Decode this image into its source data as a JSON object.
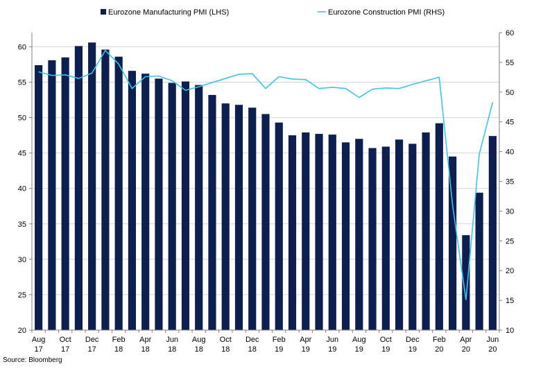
{
  "chart_data": {
    "type": "bar+line",
    "categories": [
      "Aug 17",
      "Sep 17",
      "Oct 17",
      "Nov 17",
      "Dec 17",
      "Jan 18",
      "Feb 18",
      "Mar 18",
      "Apr 18",
      "May 18",
      "Jun 18",
      "Jul 18",
      "Aug 18",
      "Sep 18",
      "Oct 18",
      "Nov 18",
      "Dec 18",
      "Jan 19",
      "Feb 19",
      "Mar 19",
      "Apr 19",
      "May 19",
      "Jun 19",
      "Jul 19",
      "Aug 19",
      "Sep 19",
      "Oct 19",
      "Nov 19",
      "Dec 19",
      "Jan 20",
      "Feb 20",
      "Mar 20",
      "Apr 20",
      "May 20",
      "Jun 20"
    ],
    "tick_labels": [
      {
        "index": 0,
        "line1": "Aug",
        "line2": "17"
      },
      {
        "index": 2,
        "line1": "Oct",
        "line2": "17"
      },
      {
        "index": 4,
        "line1": "Dec",
        "line2": "17"
      },
      {
        "index": 6,
        "line1": "Feb",
        "line2": "18"
      },
      {
        "index": 8,
        "line1": "Apr",
        "line2": "18"
      },
      {
        "index": 10,
        "line1": "Jun",
        "line2": "18"
      },
      {
        "index": 12,
        "line1": "Aug",
        "line2": "18"
      },
      {
        "index": 14,
        "line1": "Oct",
        "line2": "18"
      },
      {
        "index": 16,
        "line1": "Dec",
        "line2": "18"
      },
      {
        "index": 18,
        "line1": "Feb",
        "line2": "19"
      },
      {
        "index": 20,
        "line1": "Apr",
        "line2": "19"
      },
      {
        "index": 22,
        "line1": "Jun",
        "line2": "19"
      },
      {
        "index": 24,
        "line1": "Aug",
        "line2": "19"
      },
      {
        "index": 26,
        "line1": "Oct",
        "line2": "19"
      },
      {
        "index": 28,
        "line1": "Dec",
        "line2": "19"
      },
      {
        "index": 30,
        "line1": "Feb",
        "line2": "20"
      },
      {
        "index": 32,
        "line1": "Apr",
        "line2": "20"
      },
      {
        "index": 34,
        "line1": "Jun",
        "line2": "20"
      }
    ],
    "series": [
      {
        "name": "Eurozone Manufacturing PMI (LHS)",
        "kind": "bar",
        "axis": "left",
        "color": "#0d1f4f",
        "values": [
          57.4,
          58.1,
          58.5,
          60.1,
          60.6,
          59.6,
          58.6,
          56.6,
          56.2,
          55.5,
          54.9,
          55.1,
          54.6,
          53.2,
          52.0,
          51.8,
          51.4,
          50.5,
          49.3,
          47.5,
          47.9,
          47.7,
          47.6,
          46.5,
          47.0,
          45.7,
          45.9,
          46.9,
          46.3,
          47.9,
          49.2,
          44.5,
          33.4,
          39.4,
          47.4
        ]
      },
      {
        "name": "Eurozone Construction PMI (RHS)",
        "kind": "line",
        "axis": "right",
        "color": "#3cc3eb",
        "values": [
          53.4,
          52.8,
          52.9,
          52.3,
          53.2,
          57.0,
          54.7,
          50.6,
          52.6,
          52.7,
          51.9,
          50.3,
          50.9,
          51.6,
          52.3,
          53.0,
          53.1,
          50.6,
          52.6,
          52.2,
          52.1,
          50.6,
          50.8,
          50.6,
          49.1,
          50.5,
          50.7,
          50.6,
          51.3,
          51.9,
          52.5,
          31.0,
          15.1,
          39.6,
          48.3
        ]
      }
    ],
    "y_left": {
      "min": 20,
      "max": 62,
      "ticks": [
        20,
        25,
        30,
        35,
        40,
        45,
        50,
        55,
        60
      ]
    },
    "y_right": {
      "min": 10,
      "max": 60,
      "ticks": [
        10,
        15,
        20,
        25,
        30,
        35,
        40,
        45,
        50,
        55,
        60
      ]
    },
    "grid": true,
    "legend_position": "top"
  },
  "source_note": "Source: Bloomberg"
}
